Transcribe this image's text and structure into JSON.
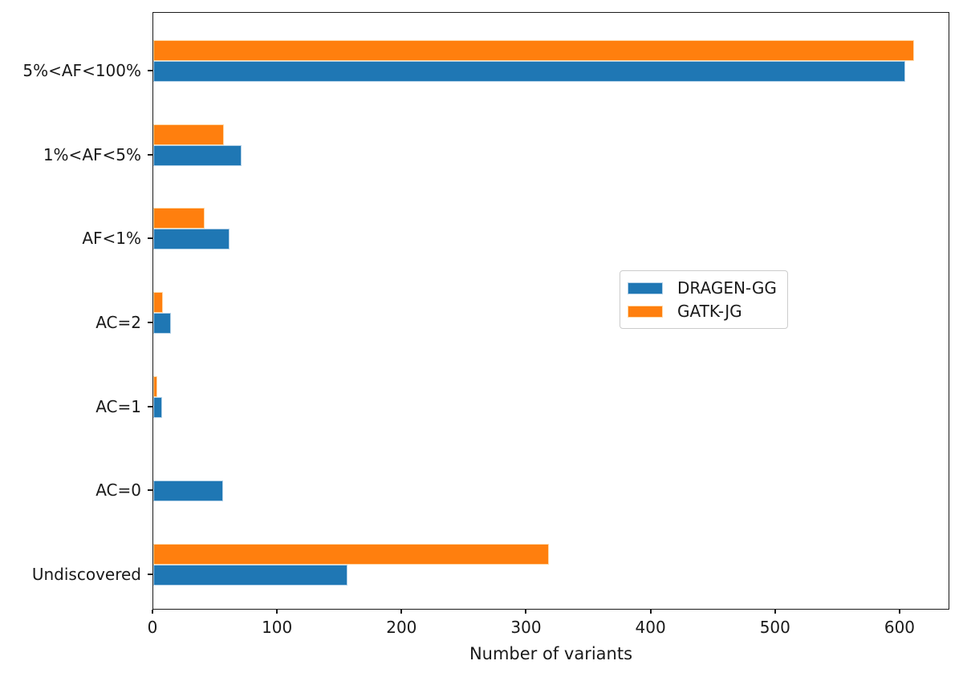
{
  "chart_data": {
    "type": "bar",
    "orientation": "horizontal",
    "title": "",
    "xlabel": "Number of variants",
    "ylabel": "",
    "grid": false,
    "xlim": [
      0,
      640
    ],
    "xticks": [
      0,
      100,
      200,
      300,
      400,
      500,
      600
    ],
    "categories": [
      "5%<AF<100%",
      "1%<AF<5%",
      "AF<1%",
      "AC=2",
      "AC=1",
      "AC=0",
      "Undiscovered"
    ],
    "series": [
      {
        "name": "DRAGEN-GG",
        "color": "#1f77b4",
        "edge_color": "#b3d1e8",
        "values": [
          604,
          71,
          61,
          14,
          7,
          56,
          156
        ]
      },
      {
        "name": "GATK-JG",
        "color": "#ff7f0e",
        "edge_color": "#ffd9a8",
        "values": [
          611,
          57,
          41,
          8,
          3,
          0,
          318
        ]
      }
    ],
    "legend": {
      "position": "center-right",
      "entries": [
        "DRAGEN-GG",
        "GATK-JG"
      ]
    }
  }
}
